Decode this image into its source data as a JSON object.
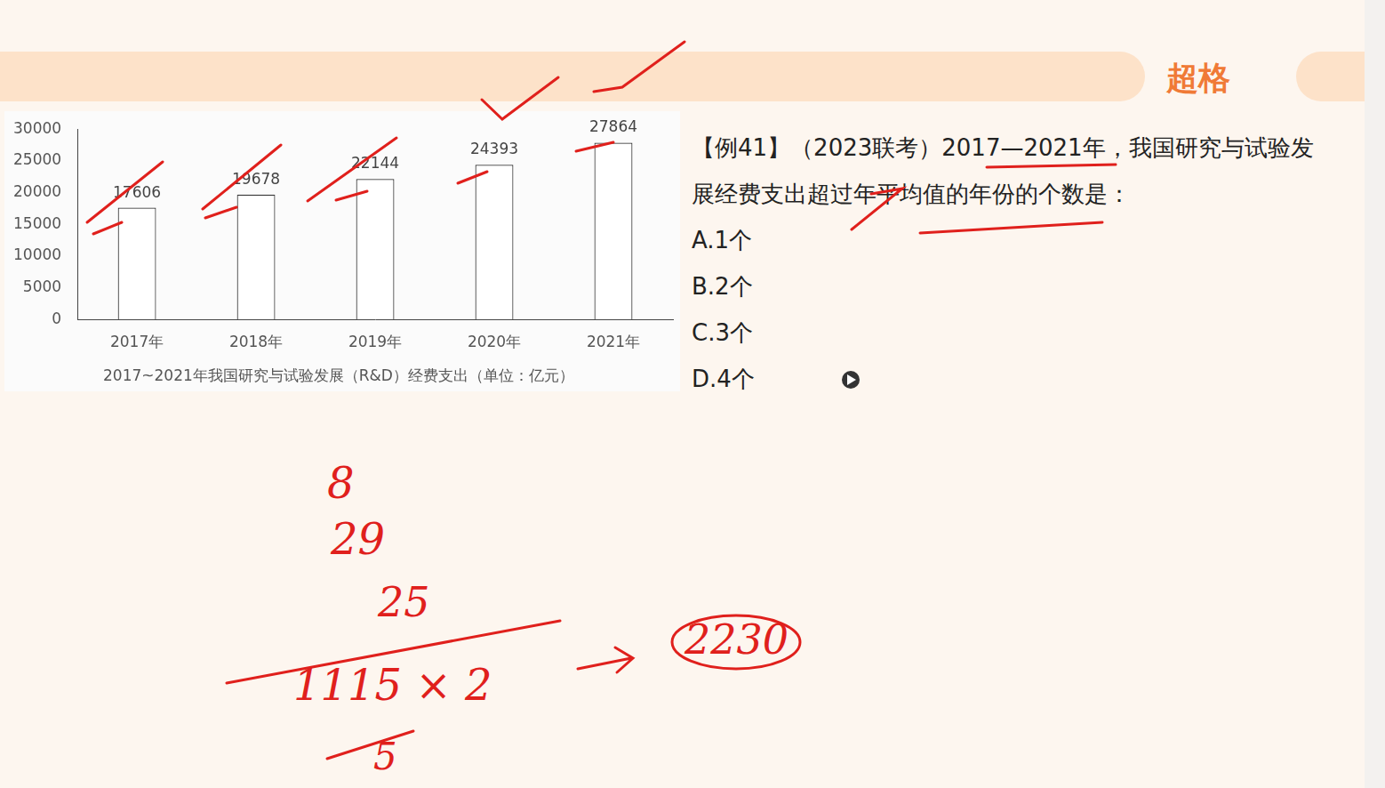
{
  "brand": "超格",
  "question": "【例41】（2023联考）2017—2021年，我国研究与试验发展经费支出超过年平均值的年份的个数是：",
  "options": [
    "A.1个",
    "B.2个",
    "C.3个",
    "D.4个"
  ],
  "handwriting": [
    "8",
    "29",
    "25",
    "1115 × 2",
    "5",
    "2230"
  ],
  "chart_data": {
    "type": "bar",
    "title": "2017~2021年我国研究与试验发展（R&D）经费支出（单位：亿元）",
    "categories": [
      "2017年",
      "2018年",
      "2019年",
      "2020年",
      "2021年"
    ],
    "values": [
      17606,
      19678,
      22144,
      24393,
      27864
    ],
    "color": "#ffffff",
    "ylim": [
      0,
      30000
    ],
    "yticks": [
      0,
      5000,
      10000,
      15000,
      20000,
      25000,
      30000
    ],
    "grid": false,
    "data_labels": true
  }
}
